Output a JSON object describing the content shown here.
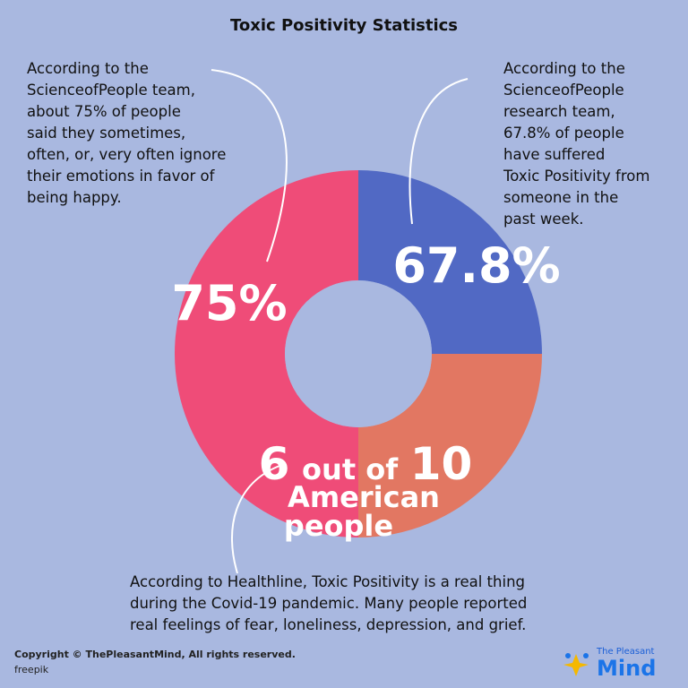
{
  "chart_data": {
    "type": "pie",
    "title": "Toxic Positivity Statistics",
    "slices": [
      {
        "label": "67.8%",
        "value": 25,
        "color": "#5169c4"
      },
      {
        "label": "6 out of 10 American people",
        "value": 25,
        "color": "#e27762"
      },
      {
        "label": "75%",
        "value": 50,
        "color": "#ef4c78"
      }
    ],
    "big_labels": {
      "blue": "67.8%",
      "coral_line1_num": "6",
      "coral_line1_mid": "out of",
      "coral_line1_num2": "10",
      "coral_line2": "American",
      "coral_line3": "people",
      "pink": "75%"
    }
  },
  "notes": {
    "left": [
      "According to the",
      "ScienceofPeople team,",
      "about 75% of people",
      "said they sometimes,",
      "often, or, very often ignore",
      "their emotions in favor of",
      "being happy."
    ],
    "right": [
      "According to the",
      "ScienceofPeople",
      "research team,",
      "67.8% of people",
      "have suffered",
      "Toxic Positivity from",
      "someone in the",
      "past week."
    ],
    "bottom": [
      "According to Healthline, Toxic Positivity is a real thing",
      "during the Covid-19 pandemic. Many people reported",
      "real feelings of fear, loneliness, depression, and grief."
    ]
  },
  "footer": {
    "copyright": "Copyright © ThePleasantMind, All rights reserved.",
    "credit": "freepik"
  },
  "logo": {
    "small": "The Pleasant",
    "big": "Mind"
  },
  "colors": {
    "background": "#a9b8e0",
    "logo_blue": "#1b74e8",
    "logo_yellow": "#f5b800"
  }
}
